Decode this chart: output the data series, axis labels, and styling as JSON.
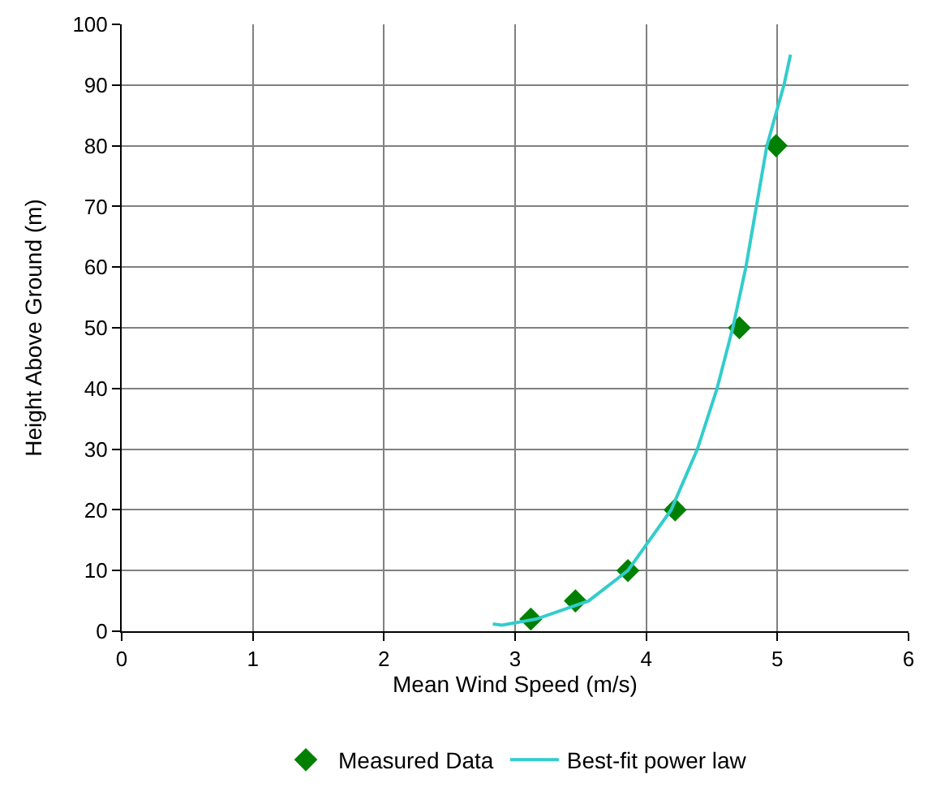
{
  "chart_data": {
    "type": "scatter",
    "xlabel": "Mean Wind Speed (m/s)",
    "ylabel": "Height Above Ground (m)",
    "xlim": [
      0,
      6
    ],
    "xticks": [
      0,
      1,
      2,
      3,
      4,
      5,
      6
    ],
    "ylim": [
      0,
      100
    ],
    "yticks": [
      0,
      10,
      20,
      30,
      40,
      50,
      60,
      70,
      80,
      90,
      100
    ],
    "grid": true,
    "legend": "bottom",
    "marker": "diamond",
    "series": [
      {
        "name": "Measured Data",
        "color": "#008000",
        "x": [
          3.12,
          3.46,
          3.86,
          4.22,
          4.71,
          4.99
        ],
        "values": [
          2,
          5,
          10,
          20,
          50,
          80
        ]
      },
      {
        "name": "Best-fit power law",
        "type": "line",
        "marker": "none",
        "line_style": "solid",
        "color": "#33cccc",
        "x": [
          2.83,
          2.9,
          3.16,
          3.56,
          3.86,
          4.19,
          4.39,
          4.54,
          4.66,
          4.76,
          4.84,
          4.92,
          5.05,
          5.1
        ],
        "values": [
          1.2,
          1,
          2,
          5,
          10,
          20,
          30,
          40,
          50,
          60,
          70,
          80,
          90,
          95
        ]
      }
    ]
  }
}
